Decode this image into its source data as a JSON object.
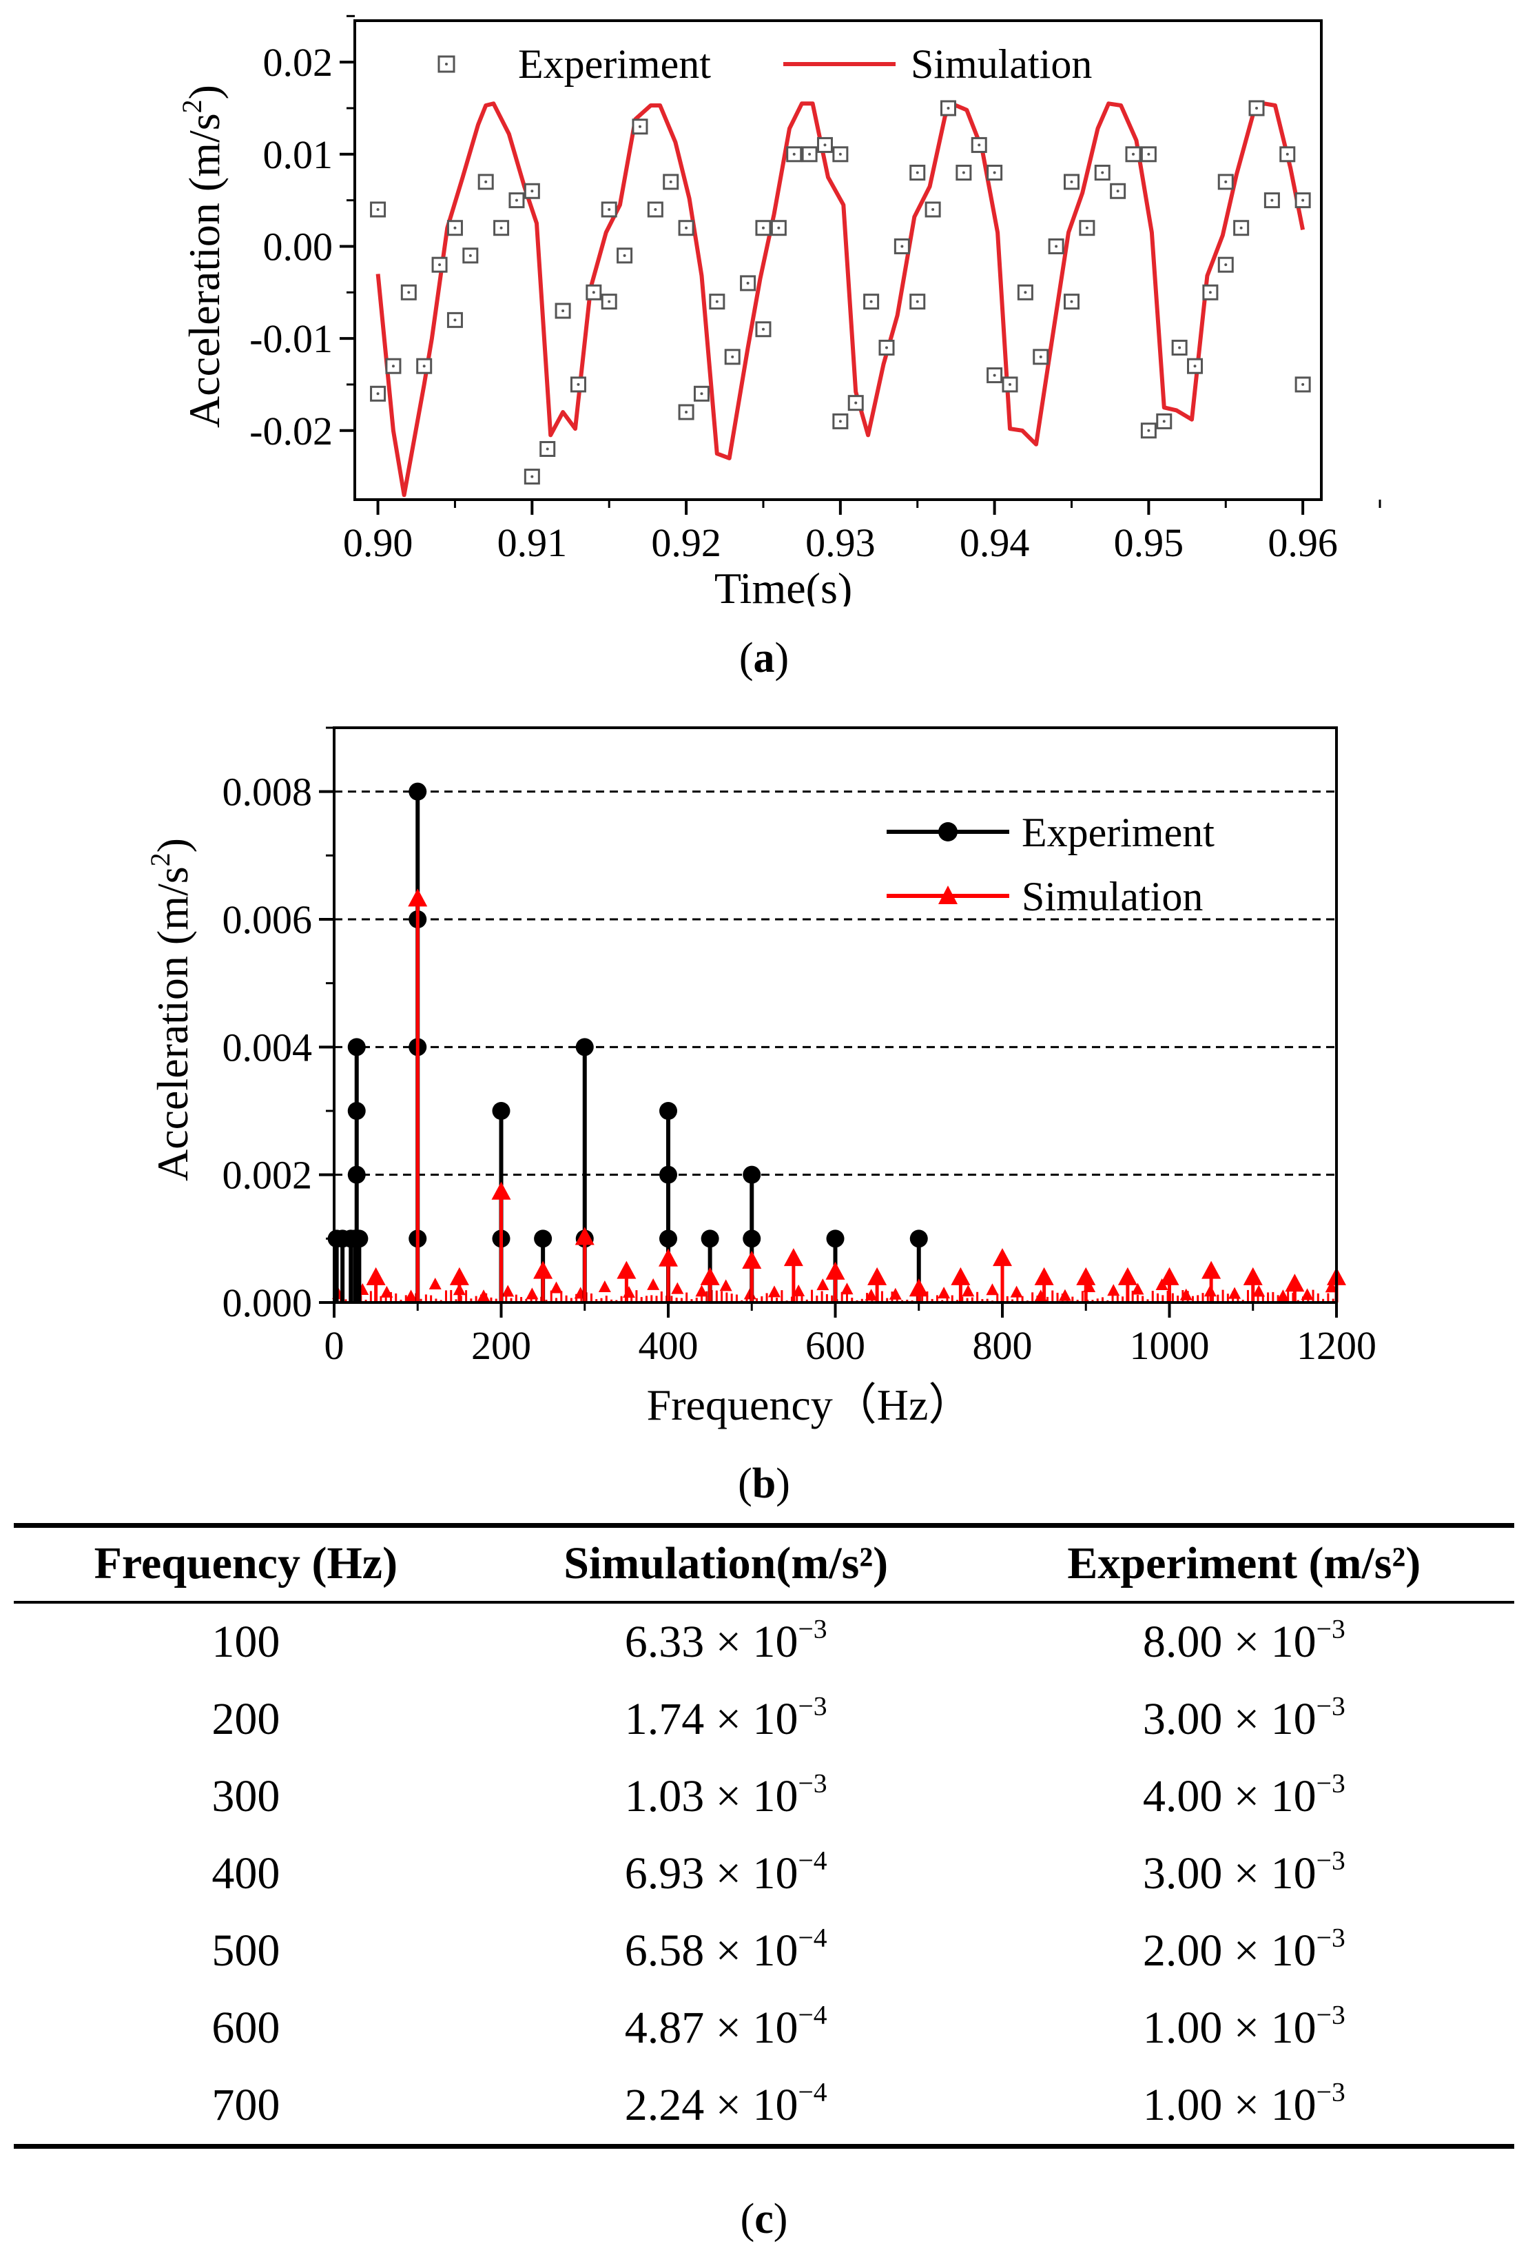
{
  "chart_data": [
    {
      "id": "a",
      "type": "line+scatter",
      "xlabel": "Time(s)",
      "ylabel_text": "Acceleration (m/s",
      "ylabel_sup": "2",
      "ylabel_close": ")",
      "xlim": [
        0.8985,
        0.9612
      ],
      "ylim": [
        -0.0275,
        0.0245
      ],
      "xticks": [
        0.9,
        0.91,
        0.92,
        0.93,
        0.94,
        0.95,
        0.96
      ],
      "xtick_labels": [
        "0.90",
        "0.91",
        "0.92",
        "0.93",
        "0.94",
        "0.95",
        "0.96"
      ],
      "yticks": [
        -0.02,
        -0.01,
        0.0,
        0.01,
        0.02
      ],
      "ytick_labels": [
        "-0.02",
        "-0.01",
        "0.00",
        "0.01",
        "0.02"
      ],
      "legend_position": "top",
      "series": [
        {
          "name": "Experiment",
          "style": "open-square",
          "color": "#555555",
          "points": [
            [
              0.9,
              0.004
            ],
            [
              0.9,
              -0.016
            ],
            [
              0.901,
              -0.013
            ],
            [
              0.902,
              -0.005
            ],
            [
              0.903,
              -0.013
            ],
            [
              0.904,
              -0.002
            ],
            [
              0.905,
              0.002
            ],
            [
              0.905,
              -0.008
            ],
            [
              0.906,
              -0.001
            ],
            [
              0.907,
              0.007
            ],
            [
              0.908,
              0.002
            ],
            [
              0.909,
              0.005
            ],
            [
              0.91,
              0.006
            ],
            [
              0.91,
              -0.025
            ],
            [
              0.911,
              -0.022
            ],
            [
              0.912,
              -0.007
            ],
            [
              0.913,
              -0.015
            ],
            [
              0.914,
              -0.005
            ],
            [
              0.915,
              0.004
            ],
            [
              0.915,
              -0.006
            ],
            [
              0.916,
              -0.001
            ],
            [
              0.917,
              0.013
            ],
            [
              0.918,
              0.004
            ],
            [
              0.919,
              0.007
            ],
            [
              0.92,
              0.002
            ],
            [
              0.92,
              -0.018
            ],
            [
              0.921,
              -0.016
            ],
            [
              0.922,
              -0.006
            ],
            [
              0.923,
              -0.012
            ],
            [
              0.924,
              -0.004
            ],
            [
              0.925,
              0.002
            ],
            [
              0.925,
              -0.009
            ],
            [
              0.926,
              0.002
            ],
            [
              0.927,
              0.01
            ],
            [
              0.928,
              0.01
            ],
            [
              0.929,
              0.011
            ],
            [
              0.93,
              0.01
            ],
            [
              0.93,
              -0.019
            ],
            [
              0.931,
              -0.017
            ],
            [
              0.932,
              -0.006
            ],
            [
              0.933,
              -0.011
            ],
            [
              0.934,
              0.0
            ],
            [
              0.935,
              0.008
            ],
            [
              0.935,
              -0.006
            ],
            [
              0.936,
              0.004
            ],
            [
              0.937,
              0.015
            ],
            [
              0.938,
              0.008
            ],
            [
              0.939,
              0.011
            ],
            [
              0.94,
              0.008
            ],
            [
              0.94,
              -0.014
            ],
            [
              0.941,
              -0.015
            ],
            [
              0.942,
              -0.005
            ],
            [
              0.943,
              -0.012
            ],
            [
              0.944,
              0.0
            ],
            [
              0.945,
              0.007
            ],
            [
              0.945,
              -0.006
            ],
            [
              0.946,
              0.002
            ],
            [
              0.947,
              0.008
            ],
            [
              0.948,
              0.006
            ],
            [
              0.949,
              0.01
            ],
            [
              0.95,
              0.01
            ],
            [
              0.95,
              -0.02
            ],
            [
              0.951,
              -0.019
            ],
            [
              0.952,
              -0.011
            ],
            [
              0.953,
              -0.013
            ],
            [
              0.954,
              -0.005
            ],
            [
              0.955,
              0.007
            ],
            [
              0.955,
              -0.002
            ],
            [
              0.956,
              0.002
            ],
            [
              0.957,
              0.015
            ],
            [
              0.958,
              0.005
            ],
            [
              0.959,
              0.01
            ],
            [
              0.96,
              0.005
            ],
            [
              0.96,
              -0.015
            ]
          ]
        },
        {
          "name": "Simulation",
          "style": "line",
          "color": "#e3262c",
          "points": [
            [
              0.9,
              -0.003
            ],
            [
              0.901,
              -0.02
            ],
            [
              0.9017,
              -0.027
            ],
            [
              0.903,
              -0.015
            ],
            [
              0.9035,
              -0.01
            ],
            [
              0.9045,
              0.002
            ],
            [
              0.9055,
              0.0075
            ],
            [
              0.9065,
              0.0132
            ],
            [
              0.907,
              0.0153
            ],
            [
              0.9075,
              0.0155
            ],
            [
              0.9085,
              0.0122
            ],
            [
              0.9095,
              0.0065
            ],
            [
              0.9103,
              0.0025
            ],
            [
              0.9112,
              -0.0205
            ],
            [
              0.912,
              -0.018
            ],
            [
              0.9128,
              -0.0198
            ],
            [
              0.9138,
              -0.0045
            ],
            [
              0.9148,
              0.0015
            ],
            [
              0.9157,
              0.0045
            ],
            [
              0.9167,
              0.0138
            ],
            [
              0.9177,
              0.0153
            ],
            [
              0.9183,
              0.0153
            ],
            [
              0.9193,
              0.0113
            ],
            [
              0.9202,
              0.0052
            ],
            [
              0.921,
              -0.0032
            ],
            [
              0.922,
              -0.0225
            ],
            [
              0.9228,
              -0.023
            ],
            [
              0.924,
              -0.011
            ],
            [
              0.9248,
              -0.0035
            ],
            [
              0.9257,
              0.0035
            ],
            [
              0.9267,
              0.0128
            ],
            [
              0.9275,
              0.0155
            ],
            [
              0.9282,
              0.0155
            ],
            [
              0.9292,
              0.0075
            ],
            [
              0.9302,
              0.0045
            ],
            [
              0.931,
              -0.0158
            ],
            [
              0.9318,
              -0.0205
            ],
            [
              0.9328,
              -0.0128
            ],
            [
              0.9337,
              -0.0075
            ],
            [
              0.9348,
              0.0032
            ],
            [
              0.9358,
              0.0065
            ],
            [
              0.9368,
              0.0142
            ],
            [
              0.9375,
              0.0153
            ],
            [
              0.9382,
              0.0148
            ],
            [
              0.9392,
              0.0105
            ],
            [
              0.9402,
              0.0015
            ],
            [
              0.941,
              -0.0198
            ],
            [
              0.9418,
              -0.02
            ],
            [
              0.9427,
              -0.0215
            ],
            [
              0.9437,
              -0.0105
            ],
            [
              0.9448,
              0.0015
            ],
            [
              0.9457,
              0.0058
            ],
            [
              0.9467,
              0.0128
            ],
            [
              0.9474,
              0.0155
            ],
            [
              0.9482,
              0.0153
            ],
            [
              0.9492,
              0.0115
            ],
            [
              0.9502,
              0.0015
            ],
            [
              0.951,
              -0.0175
            ],
            [
              0.9518,
              -0.0178
            ],
            [
              0.9528,
              -0.0188
            ],
            [
              0.9538,
              -0.0032
            ],
            [
              0.9548,
              0.0012
            ],
            [
              0.9557,
              0.0078
            ],
            [
              0.9568,
              0.0145
            ],
            [
              0.9575,
              0.0155
            ],
            [
              0.9582,
              0.0153
            ],
            [
              0.9592,
              0.0085
            ],
            [
              0.96,
              0.0018
            ]
          ]
        }
      ],
      "caption_open": "(",
      "caption_letter": "a",
      "caption_close": ")"
    },
    {
      "id": "b",
      "type": "stem",
      "xlabel": "Frequency（Hz）",
      "ylabel_text": "Acceleration (m/s",
      "ylabel_sup": "2",
      "ylabel_close": ")",
      "xlim": [
        0,
        1200
      ],
      "ylim": [
        0,
        0.009
      ],
      "xticks": [
        0,
        200,
        400,
        600,
        800,
        1000,
        1200
      ],
      "xtick_labels": [
        "0",
        "200",
        "400",
        "600",
        "800",
        "1000",
        "1200"
      ],
      "yticks": [
        0.0,
        0.002,
        0.004,
        0.006,
        0.008
      ],
      "ytick_labels": [
        "0.000",
        "0.002",
        "0.004",
        "0.006",
        "0.008"
      ],
      "grid": "dashed-horizontal",
      "legend_position": "top-right",
      "series": [
        {
          "name": "Experiment",
          "style": "stem-circle",
          "color": "#000000",
          "points": [
            [
              3,
              0.001
            ],
            [
              10,
              0.001
            ],
            [
              20,
              0.001
            ],
            [
              25,
              0.001
            ],
            [
              27,
              0.002
            ],
            [
              27,
              0.003
            ],
            [
              27,
              0.004
            ],
            [
              30,
              0.001
            ],
            [
              100,
              0.001
            ],
            [
              100,
              0.004
            ],
            [
              100,
              0.006
            ],
            [
              100,
              0.008
            ],
            [
              200,
              0.001
            ],
            [
              200,
              0.003
            ],
            [
              250,
              0.001
            ],
            [
              300,
              0.001
            ],
            [
              300,
              0.004
            ],
            [
              400,
              0.001
            ],
            [
              400,
              0.002
            ],
            [
              400,
              0.003
            ],
            [
              450,
              0.001
            ],
            [
              500,
              0.001
            ],
            [
              500,
              0.002
            ],
            [
              600,
              0.001
            ],
            [
              700,
              0.001
            ]
          ]
        },
        {
          "name": "Simulation",
          "style": "stem-triangle",
          "color": "#ff0000",
          "points": [
            [
              50,
              0.0004
            ],
            [
              100,
              0.00633
            ],
            [
              150,
              0.0004
            ],
            [
              200,
              0.00174
            ],
            [
              250,
              0.0005
            ],
            [
              300,
              0.00103
            ],
            [
              350,
              0.0005
            ],
            [
              400,
              0.000693
            ],
            [
              450,
              0.0004
            ],
            [
              500,
              0.000658
            ],
            [
              550,
              0.0007
            ],
            [
              600,
              0.000487
            ],
            [
              650,
              0.0004
            ],
            [
              700,
              0.000224
            ],
            [
              750,
              0.0004
            ],
            [
              800,
              0.0007
            ],
            [
              850,
              0.0004
            ],
            [
              900,
              0.0004
            ],
            [
              950,
              0.0004
            ],
            [
              1000,
              0.0004
            ],
            [
              1050,
              0.0005
            ],
            [
              1100,
              0.0004
            ],
            [
              1150,
              0.0003
            ],
            [
              1200,
              0.0004
            ]
          ]
        }
      ],
      "caption_open": "(",
      "caption_letter": "b",
      "caption_close": ")"
    },
    {
      "id": "c",
      "type": "table",
      "headers": [
        "Frequency (Hz)",
        "Simulation(m/s²)",
        "Experiment (m/s²)"
      ],
      "rows": [
        {
          "freq": "100",
          "sim_mant": "6.33 × 10",
          "sim_exp": "−3",
          "exp_mant": "8.00 × 10",
          "exp_exp": "−3"
        },
        {
          "freq": "200",
          "sim_mant": "1.74 × 10",
          "sim_exp": "−3",
          "exp_mant": "3.00 × 10",
          "exp_exp": "−3"
        },
        {
          "freq": "300",
          "sim_mant": "1.03 × 10",
          "sim_exp": "−3",
          "exp_mant": "4.00 × 10",
          "exp_exp": "−3"
        },
        {
          "freq": "400",
          "sim_mant": "6.93 × 10",
          "sim_exp": "−4",
          "exp_mant": "3.00 × 10",
          "exp_exp": "−3"
        },
        {
          "freq": "500",
          "sim_mant": "6.58 × 10",
          "sim_exp": "−4",
          "exp_mant": "2.00 × 10",
          "exp_exp": "−3"
        },
        {
          "freq": "600",
          "sim_mant": "4.87 × 10",
          "sim_exp": "−4",
          "exp_mant": "1.00 × 10",
          "exp_exp": "−3"
        },
        {
          "freq": "700",
          "sim_mant": "2.24 × 10",
          "sim_exp": "−4",
          "exp_mant": "1.00 × 10",
          "exp_exp": "−3"
        }
      ],
      "caption_open": "(",
      "caption_letter": "c",
      "caption_close": ")"
    }
  ]
}
